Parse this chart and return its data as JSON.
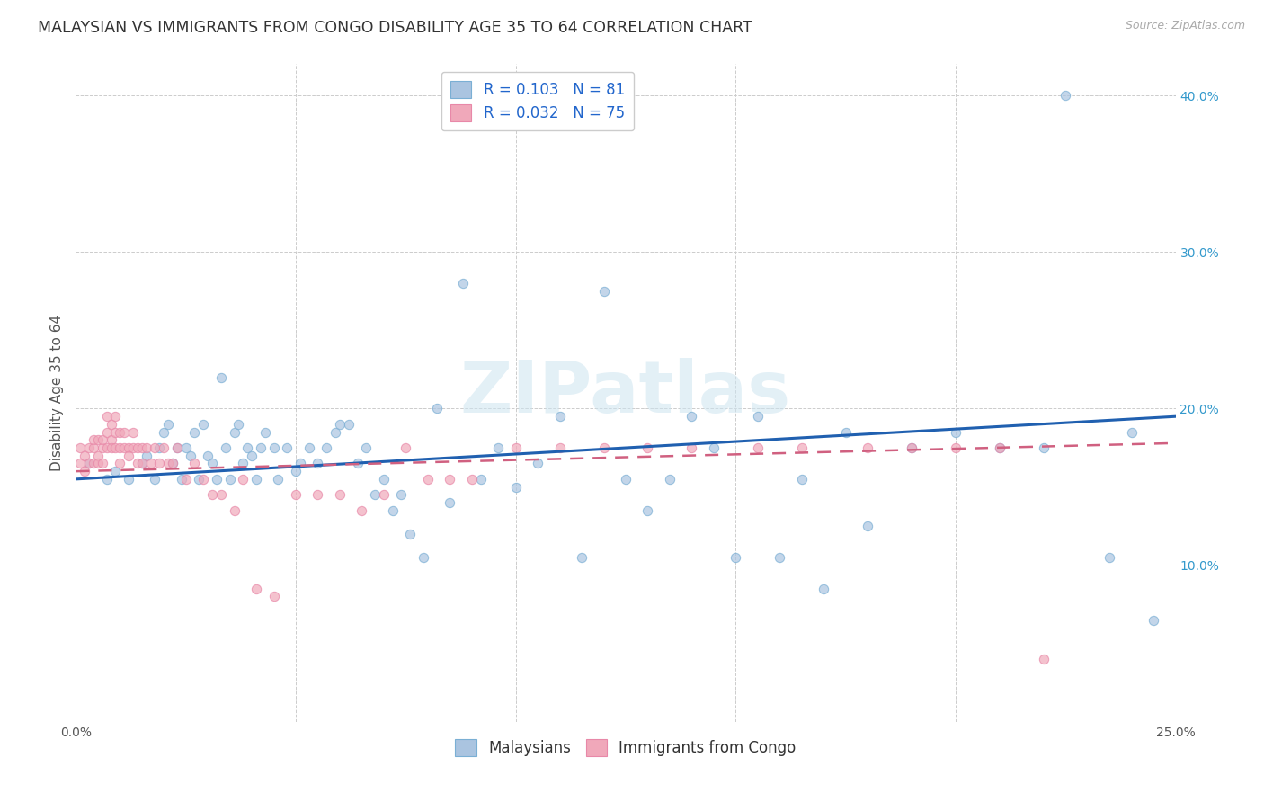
{
  "title": "MALAYSIAN VS IMMIGRANTS FROM CONGO DISABILITY AGE 35 TO 64 CORRELATION CHART",
  "source": "Source: ZipAtlas.com",
  "ylabel": "Disability Age 35 to 64",
  "xlim": [
    0.0,
    0.25
  ],
  "ylim": [
    0.0,
    0.42
  ],
  "xtick_positions": [
    0.0,
    0.05,
    0.1,
    0.15,
    0.2,
    0.25
  ],
  "xtick_labels": [
    "0.0%",
    "",
    "",
    "",
    "",
    "25.0%"
  ],
  "ytick_positions": [
    0.1,
    0.2,
    0.3,
    0.4
  ],
  "ytick_labels": [
    "10.0%",
    "20.0%",
    "30.0%",
    "40.0%"
  ],
  "legend_r_blue": "R = 0.103",
  "legend_n_blue": "N = 81",
  "legend_r_pink": "R = 0.032",
  "legend_n_pink": "N = 75",
  "blue_fill": "#aac4e0",
  "pink_fill": "#f0a8ba",
  "blue_edge": "#7aafd4",
  "pink_edge": "#e888a8",
  "blue_line_color": "#2060b0",
  "pink_line_color": "#d06080",
  "watermark": "ZIPatlas",
  "title_fontsize": 12.5,
  "axis_fontsize": 11,
  "tick_fontsize": 10,
  "legend_fontsize": 12,
  "scatter_size": 55,
  "scatter_alpha": 0.7,
  "blue_scatter_x": [
    0.003,
    0.007,
    0.009,
    0.012,
    0.015,
    0.016,
    0.018,
    0.019,
    0.02,
    0.021,
    0.022,
    0.023,
    0.024,
    0.025,
    0.026,
    0.027,
    0.028,
    0.029,
    0.03,
    0.031,
    0.032,
    0.033,
    0.034,
    0.035,
    0.036,
    0.037,
    0.038,
    0.039,
    0.04,
    0.041,
    0.042,
    0.043,
    0.045,
    0.046,
    0.048,
    0.05,
    0.051,
    0.053,
    0.055,
    0.057,
    0.059,
    0.06,
    0.062,
    0.064,
    0.066,
    0.068,
    0.07,
    0.072,
    0.074,
    0.076,
    0.079,
    0.082,
    0.085,
    0.088,
    0.092,
    0.096,
    0.1,
    0.105,
    0.11,
    0.115,
    0.12,
    0.125,
    0.13,
    0.135,
    0.14,
    0.145,
    0.15,
    0.155,
    0.16,
    0.165,
    0.17,
    0.175,
    0.18,
    0.19,
    0.2,
    0.21,
    0.22,
    0.225,
    0.235,
    0.24,
    0.245
  ],
  "blue_scatter_y": [
    0.165,
    0.155,
    0.16,
    0.155,
    0.165,
    0.17,
    0.155,
    0.175,
    0.185,
    0.19,
    0.165,
    0.175,
    0.155,
    0.175,
    0.17,
    0.185,
    0.155,
    0.19,
    0.17,
    0.165,
    0.155,
    0.22,
    0.175,
    0.155,
    0.185,
    0.19,
    0.165,
    0.175,
    0.17,
    0.155,
    0.175,
    0.185,
    0.175,
    0.155,
    0.175,
    0.16,
    0.165,
    0.175,
    0.165,
    0.175,
    0.185,
    0.19,
    0.19,
    0.165,
    0.175,
    0.145,
    0.155,
    0.135,
    0.145,
    0.12,
    0.105,
    0.2,
    0.14,
    0.28,
    0.155,
    0.175,
    0.15,
    0.165,
    0.195,
    0.105,
    0.275,
    0.155,
    0.135,
    0.155,
    0.195,
    0.175,
    0.105,
    0.195,
    0.105,
    0.155,
    0.085,
    0.185,
    0.125,
    0.175,
    0.185,
    0.175,
    0.175,
    0.4,
    0.105,
    0.185,
    0.065
  ],
  "pink_scatter_x": [
    0.001,
    0.001,
    0.002,
    0.002,
    0.003,
    0.003,
    0.004,
    0.004,
    0.004,
    0.005,
    0.005,
    0.005,
    0.006,
    0.006,
    0.006,
    0.007,
    0.007,
    0.007,
    0.008,
    0.008,
    0.008,
    0.009,
    0.009,
    0.009,
    0.01,
    0.01,
    0.01,
    0.011,
    0.011,
    0.012,
    0.012,
    0.013,
    0.013,
    0.014,
    0.014,
    0.015,
    0.015,
    0.016,
    0.017,
    0.018,
    0.019,
    0.02,
    0.021,
    0.022,
    0.023,
    0.025,
    0.027,
    0.029,
    0.031,
    0.033,
    0.036,
    0.038,
    0.041,
    0.045,
    0.05,
    0.055,
    0.06,
    0.065,
    0.07,
    0.075,
    0.08,
    0.085,
    0.09,
    0.1,
    0.11,
    0.12,
    0.13,
    0.14,
    0.155,
    0.165,
    0.18,
    0.19,
    0.2,
    0.21,
    0.22
  ],
  "pink_scatter_y": [
    0.175,
    0.165,
    0.17,
    0.16,
    0.175,
    0.165,
    0.175,
    0.165,
    0.18,
    0.17,
    0.165,
    0.18,
    0.175,
    0.165,
    0.18,
    0.175,
    0.185,
    0.195,
    0.18,
    0.175,
    0.19,
    0.175,
    0.185,
    0.195,
    0.175,
    0.185,
    0.165,
    0.175,
    0.185,
    0.175,
    0.17,
    0.175,
    0.185,
    0.175,
    0.165,
    0.175,
    0.165,
    0.175,
    0.165,
    0.175,
    0.165,
    0.175,
    0.165,
    0.165,
    0.175,
    0.155,
    0.165,
    0.155,
    0.145,
    0.145,
    0.135,
    0.155,
    0.085,
    0.08,
    0.145,
    0.145,
    0.145,
    0.135,
    0.145,
    0.175,
    0.155,
    0.155,
    0.155,
    0.175,
    0.175,
    0.175,
    0.175,
    0.175,
    0.175,
    0.175,
    0.175,
    0.175,
    0.175,
    0.175,
    0.04
  ],
  "blue_line_x": [
    0.0,
    0.25
  ],
  "blue_line_y": [
    0.155,
    0.195
  ],
  "pink_line_x": [
    0.0,
    0.25
  ],
  "pink_line_y": [
    0.16,
    0.178
  ]
}
